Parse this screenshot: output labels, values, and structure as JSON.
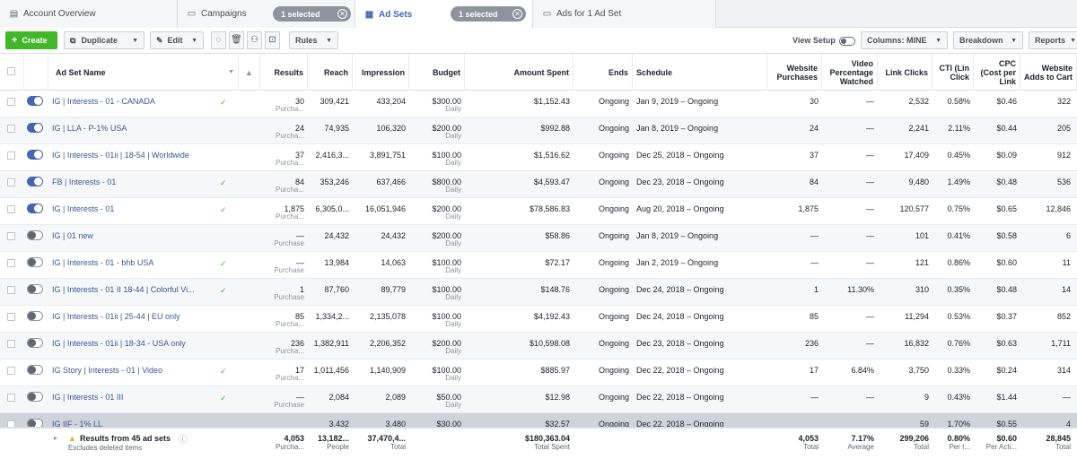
{
  "tabs": {
    "account": "Account Overview",
    "campaigns": "Campaigns",
    "campaigns_pill": "1 selected",
    "adsets": "Ad Sets",
    "adsets_pill": "1 selected",
    "ads": "Ads for 1 Ad Set"
  },
  "toolbar": {
    "create": "Create",
    "duplicate": "Duplicate",
    "edit": "Edit",
    "rules": "Rules",
    "view_setup": "View Setup",
    "columns": "Columns: MINE",
    "breakdown": "Breakdown",
    "reports": "Reports"
  },
  "headers": {
    "name": "Ad Set Name",
    "results": "Results",
    "reach": "Reach",
    "impression": "Impression",
    "budget": "Budget",
    "amount": "Amount Spent",
    "ends": "Ends",
    "schedule": "Schedule",
    "website_purchases": "Website Purchases",
    "video_pct": "Video Percentage Watched",
    "link_clicks": "Link Clicks",
    "ctr": "CTI (Lin Click",
    "cpc": "CPC (Cost per Link",
    "adds_to_cart": "Website Adds to Cart"
  },
  "rows": [
    {
      "on": true,
      "name": "IG | Interests - 01 - CANADA",
      "check": true,
      "results": "30",
      "results_sub": "Purcha...",
      "reach": "309,421",
      "impr": "433,204",
      "budget": "$300.00",
      "budget_sub": "Daily",
      "spent": "$1,152.43",
      "ends": "Ongoing",
      "schedule": "Jan 9, 2019 – Ongoing",
      "wp": "30",
      "vpw": "—",
      "lc": "2,532",
      "ctr": "0.58%",
      "cpc": "$0.46",
      "atc": "322"
    },
    {
      "on": true,
      "name": "IG | LLA - P-1% USA",
      "check": false,
      "results": "24",
      "results_sub": "Purcha...",
      "reach": "74,935",
      "impr": "106,320",
      "budget": "$200.00",
      "budget_sub": "Daily",
      "spent": "$992.88",
      "ends": "Ongoing",
      "schedule": "Jan 8, 2019 – Ongoing",
      "wp": "24",
      "vpw": "—",
      "lc": "2,241",
      "ctr": "2.11%",
      "cpc": "$0.44",
      "atc": "205"
    },
    {
      "on": true,
      "name": "IG | Interests - 01ii | 18-54 | Worldwide",
      "check": false,
      "results": "37",
      "results_sub": "Purcha...",
      "reach": "2,416,3...",
      "impr": "3,891,751",
      "budget": "$100.00",
      "budget_sub": "Daily",
      "spent": "$1,516.62",
      "ends": "Ongoing",
      "schedule": "Dec 25, 2018 – Ongoing",
      "wp": "37",
      "vpw": "—",
      "lc": "17,409",
      "ctr": "0.45%",
      "cpc": "$0.09",
      "atc": "912"
    },
    {
      "on": true,
      "name": "FB | Interests - 01",
      "check": true,
      "results": "84",
      "results_sub": "Purcha...",
      "reach": "353,246",
      "impr": "637,466",
      "budget": "$800.00",
      "budget_sub": "Daily",
      "spent": "$4,593.47",
      "ends": "Ongoing",
      "schedule": "Dec 23, 2018 – Ongoing",
      "wp": "84",
      "vpw": "—",
      "lc": "9,480",
      "ctr": "1.49%",
      "cpc": "$0.48",
      "atc": "536"
    },
    {
      "on": true,
      "name": "IG | Interests - 01",
      "check": true,
      "results": "1,875",
      "results_sub": "Purcha...",
      "reach": "6,305,0...",
      "impr": "16,051,946",
      "budget": "$200.00",
      "budget_sub": "Daily",
      "spent": "$78,586.83",
      "ends": "Ongoing",
      "schedule": "Aug 20, 2018 – Ongoing",
      "wp": "1,875",
      "vpw": "—",
      "lc": "120,577",
      "ctr": "0.75%",
      "cpc": "$0.65",
      "atc": "12,846"
    },
    {
      "on": false,
      "name": "IG | 01 new",
      "check": false,
      "results": "—",
      "results_sub": "Purchase",
      "reach": "24,432",
      "impr": "24,432",
      "budget": "$200.00",
      "budget_sub": "Daily",
      "spent": "$58.86",
      "ends": "Ongoing",
      "schedule": "Jan 8, 2019 – Ongoing",
      "wp": "—",
      "vpw": "—",
      "lc": "101",
      "ctr": "0.41%",
      "cpc": "$0.58",
      "atc": "6"
    },
    {
      "on": false,
      "name": "IG | Interests - 01 - bhb USA",
      "check": true,
      "results": "—",
      "results_sub": "Purchase",
      "reach": "13,984",
      "impr": "14,063",
      "budget": "$100.00",
      "budget_sub": "Daily",
      "spent": "$72.17",
      "ends": "Ongoing",
      "schedule": "Jan 2, 2019 – Ongoing",
      "wp": "—",
      "vpw": "—",
      "lc": "121",
      "ctr": "0.86%",
      "cpc": "$0.60",
      "atc": "11"
    },
    {
      "on": false,
      "name": "IG | Interests - 01 II 18-44 | Colorful Vi...",
      "check": true,
      "results": "1",
      "results_sub": "Purchase",
      "reach": "87,760",
      "impr": "89,779",
      "budget": "$100.00",
      "budget_sub": "Daily",
      "spent": "$148.76",
      "ends": "Ongoing",
      "schedule": "Dec 24, 2018 – Ongoing",
      "wp": "1",
      "vpw": "11.30%",
      "lc": "310",
      "ctr": "0.35%",
      "cpc": "$0.48",
      "atc": "14"
    },
    {
      "on": false,
      "name": "IG | Interests - 01ii | 25-44 | EU only",
      "check": false,
      "results": "85",
      "results_sub": "Purcha...",
      "reach": "1,334,2...",
      "impr": "2,135,078",
      "budget": "$100.00",
      "budget_sub": "Daily",
      "spent": "$4,192.43",
      "ends": "Ongoing",
      "schedule": "Dec 24, 2018 – Ongoing",
      "wp": "85",
      "vpw": "—",
      "lc": "11,294",
      "ctr": "0.53%",
      "cpc": "$0.37",
      "atc": "852"
    },
    {
      "on": false,
      "name": "IG | Interests - 01ii | 18-34 - USA only",
      "check": false,
      "results": "236",
      "results_sub": "Purcha...",
      "reach": "1,382,911",
      "impr": "2,206,352",
      "budget": "$200.00",
      "budget_sub": "Daily",
      "spent": "$10,598.08",
      "ends": "Ongoing",
      "schedule": "Dec 23, 2018 – Ongoing",
      "wp": "236",
      "vpw": "—",
      "lc": "16,832",
      "ctr": "0.76%",
      "cpc": "$0.63",
      "atc": "1,711"
    },
    {
      "on": false,
      "name": "IG Story | Interests - 01 | Video",
      "check": true,
      "results": "17",
      "results_sub": "Purcha...",
      "reach": "1,011,456",
      "impr": "1,140,909",
      "budget": "$100.00",
      "budget_sub": "Daily",
      "spent": "$885.97",
      "ends": "Ongoing",
      "schedule": "Dec 22, 2018 – Ongoing",
      "wp": "17",
      "vpw": "6.84%",
      "lc": "3,750",
      "ctr": "0.33%",
      "cpc": "$0.24",
      "atc": "314"
    },
    {
      "on": false,
      "name": "IG | Interests - 01 III",
      "check": true,
      "results": "—",
      "results_sub": "Purchase",
      "reach": "2,084",
      "impr": "2,089",
      "budget": "$50.00",
      "budget_sub": "Daily",
      "spent": "$12.98",
      "ends": "Ongoing",
      "schedule": "Dec 22, 2018 – Ongoing",
      "wp": "—",
      "vpw": "—",
      "lc": "9",
      "ctr": "0.43%",
      "cpc": "$1.44",
      "atc": "—"
    },
    {
      "on": false,
      "name": "IG IIF - 1% LL",
      "check": false,
      "selected": true,
      "results": "",
      "results_sub": "",
      "reach": "3,432",
      "impr": "3,480",
      "budget": "$30.00",
      "budget_sub": "",
      "spent": "$32.57",
      "ends": "Ongoing",
      "schedule": "Dec 22, 2018 – Ongoing",
      "wp": "",
      "vpw": "",
      "lc": "59",
      "ctr": "1.70%",
      "cpc": "$0.55",
      "atc": "4"
    }
  ],
  "footer": {
    "title": "Results from 45 ad sets",
    "sub": "Excludes deleted items",
    "results": "4,053",
    "results_sub": "Purcha...",
    "reach": "13,182...",
    "reach_sub": "People",
    "impr": "37,470,4...",
    "impr_sub": "Total",
    "spent": "$180,363.04",
    "spent_sub": "Total Spent",
    "wp": "4,053",
    "wp_sub": "Total",
    "vpw": "7.17%",
    "vpw_sub": "Average",
    "lc": "299,206",
    "lc_sub": "Total",
    "ctr": "0.80%",
    "ctr_sub": "Per I...",
    "cpc": "$0.60",
    "cpc_sub": "Per Acti...",
    "atc": "28,845",
    "atc_sub": "Total"
  }
}
